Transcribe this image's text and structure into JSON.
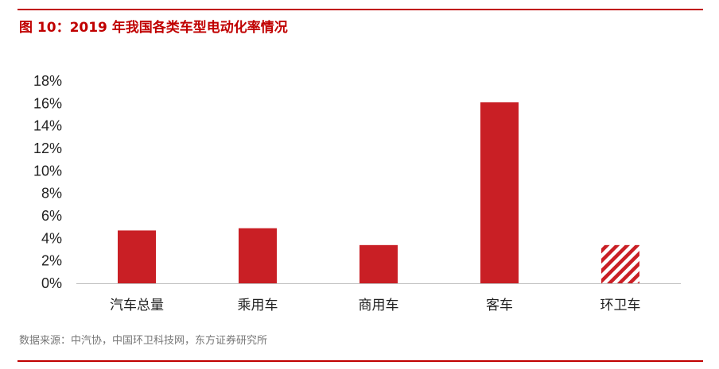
{
  "figure": {
    "title": "图 10：2019 年我国各类车型电动化率情况",
    "source": "数据来源：中汽协，中国环卫科技网，东方证券研究所"
  },
  "colors": {
    "accent": "#c00000",
    "bar": "#c91f25"
  },
  "chart_data": {
    "type": "bar",
    "title": "",
    "xlabel": "",
    "ylabel": "",
    "categories": [
      "汽车总量",
      "乘用车",
      "商用车",
      "客车",
      "环卫车"
    ],
    "values": [
      4.7,
      4.9,
      3.4,
      16.1,
      3.4
    ],
    "styles": [
      "solid",
      "solid",
      "solid",
      "solid",
      "hatched"
    ],
    "unit": "%",
    "ylim": [
      0,
      18
    ],
    "yticks": [
      0,
      2,
      4,
      6,
      8,
      10,
      12,
      14,
      16,
      18
    ],
    "ytick_labels": [
      "0%",
      "2%",
      "4%",
      "6%",
      "8%",
      "10%",
      "12%",
      "14%",
      "16%",
      "18%"
    ],
    "grid": false,
    "legend": "none"
  }
}
